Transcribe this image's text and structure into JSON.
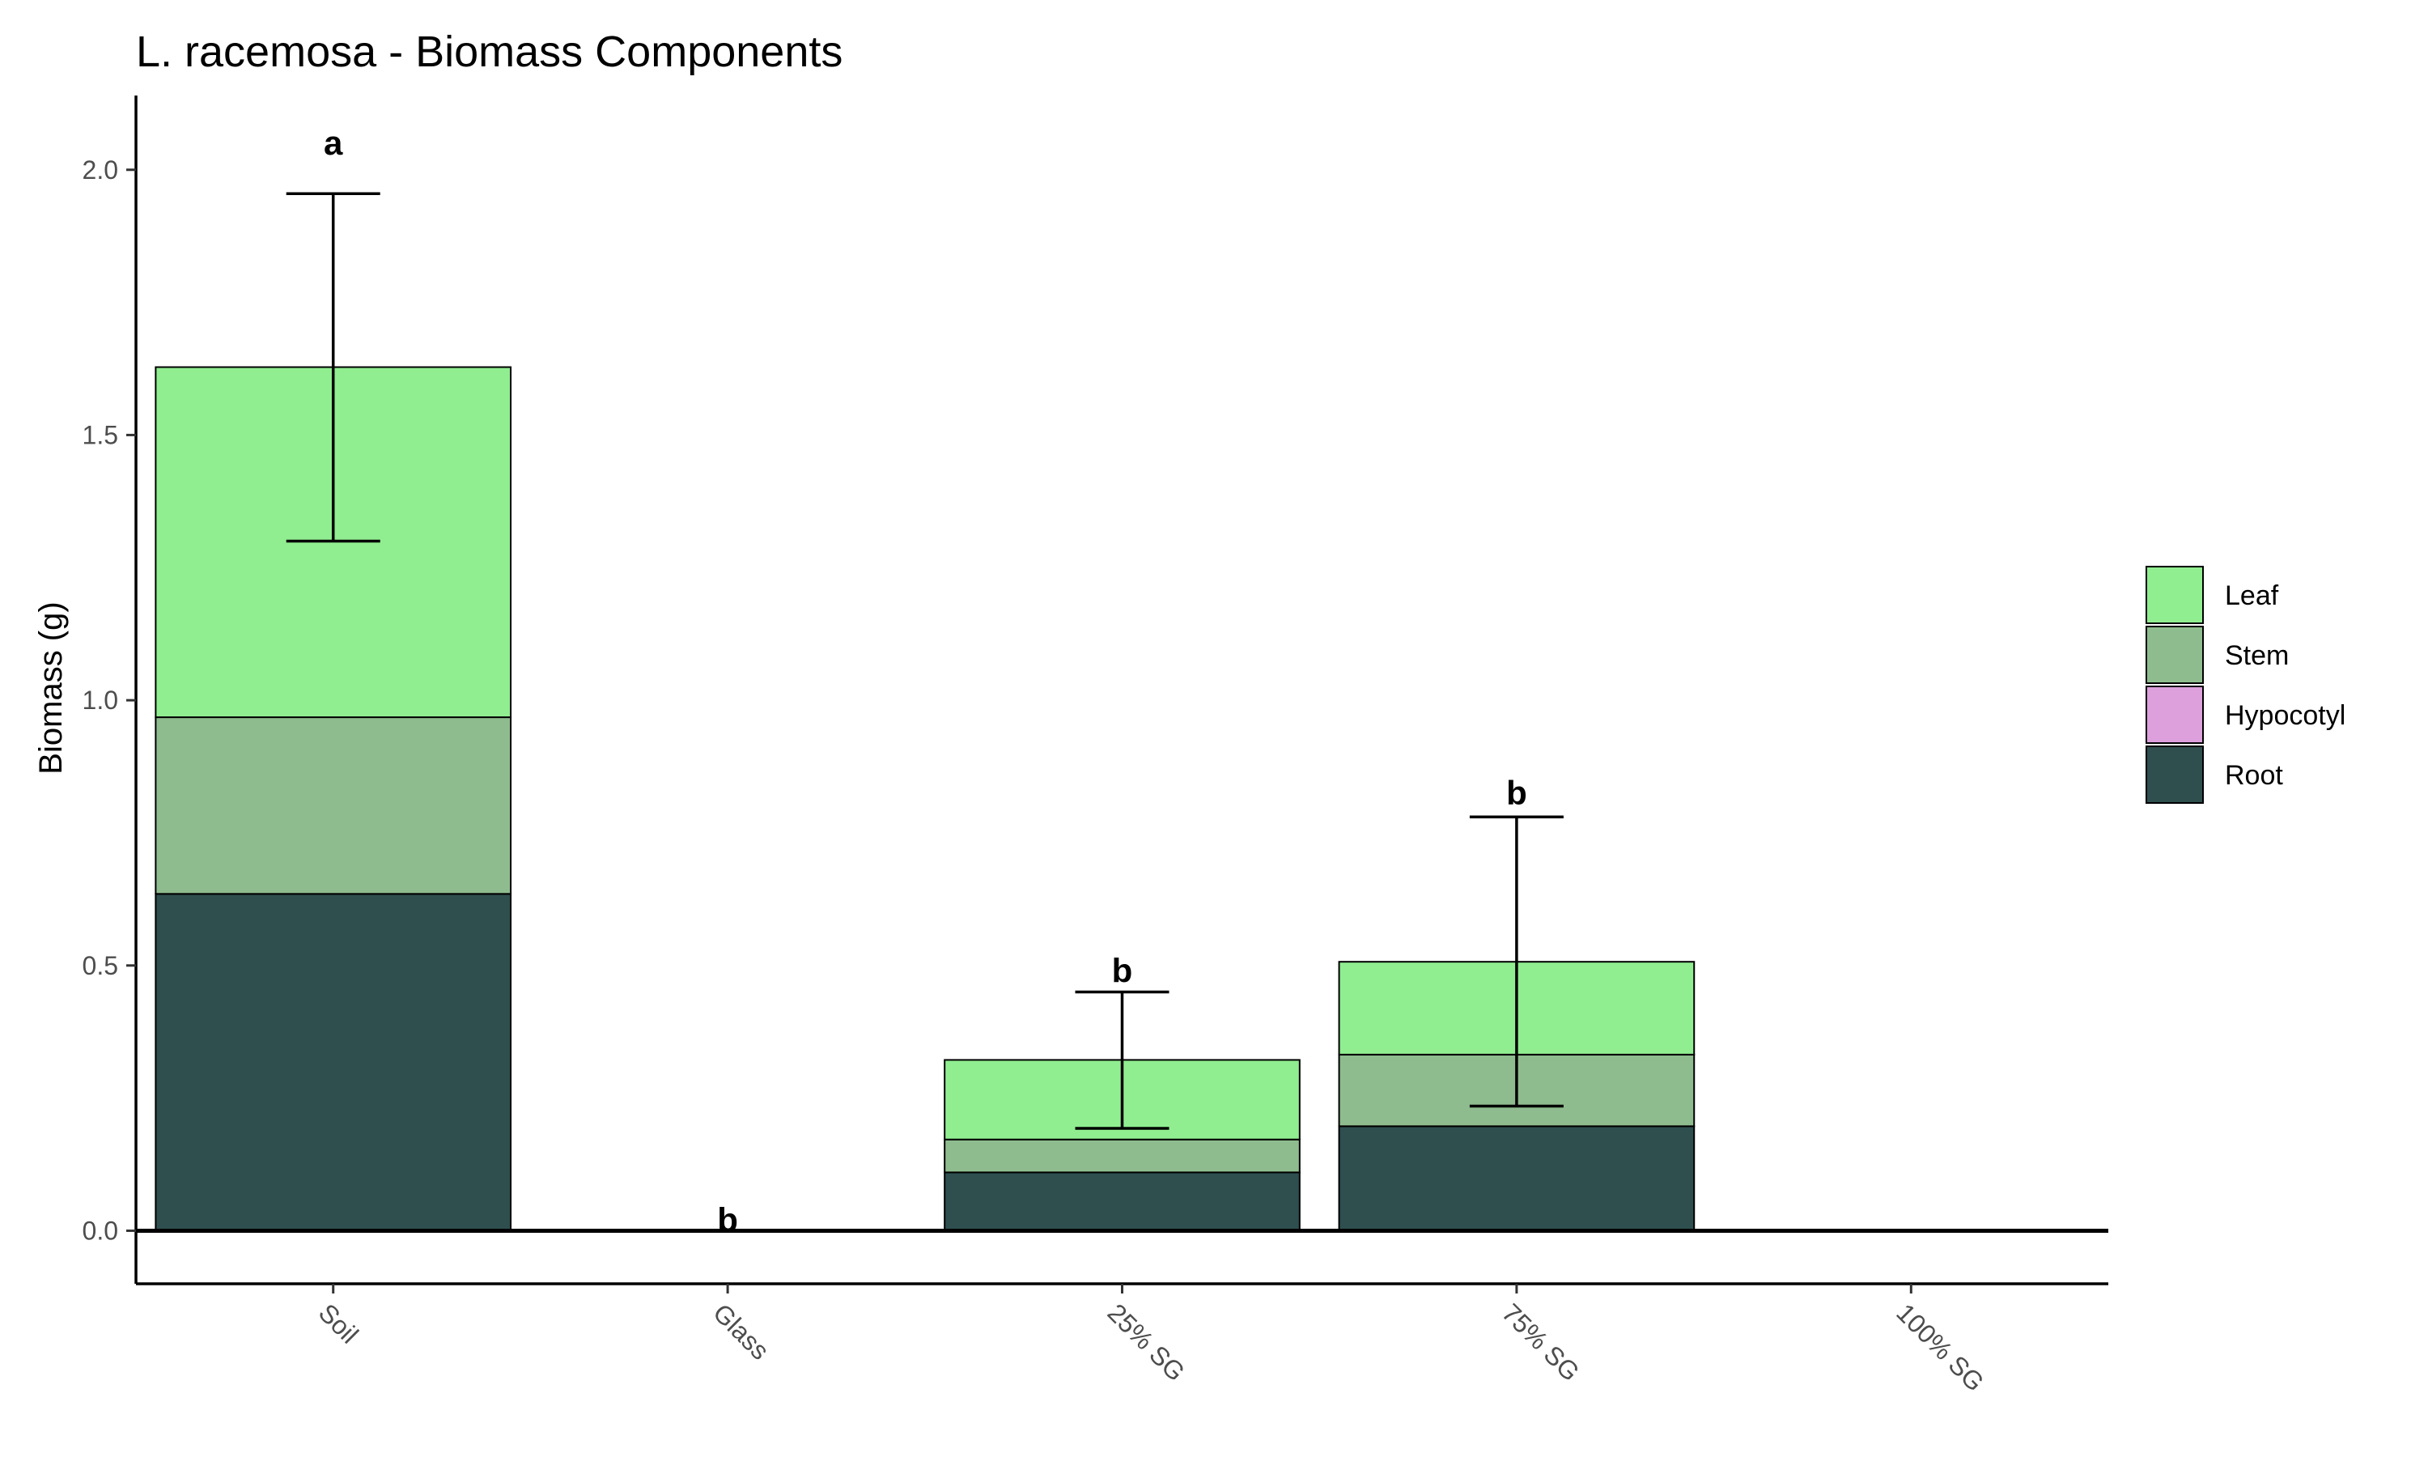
{
  "chart_data": {
    "type": "bar",
    "stacked": true,
    "title": "L. racemosa - Biomass Components",
    "xlabel": "",
    "ylabel": "Biomass (g)",
    "ylim": [
      -0.1,
      2.14
    ],
    "yticks": [
      0.0,
      0.5,
      1.0,
      1.5,
      2.0
    ],
    "ytick_labels": [
      "0.0",
      "0.5",
      "1.0",
      "1.5",
      "2.0"
    ],
    "categories": [
      "Soil",
      "Glass",
      "25% SG",
      "75% SG",
      "100% SG"
    ],
    "series": [
      {
        "name": "Root",
        "color": "#2f4f4f",
        "values": [
          0.635,
          0.0,
          0.11,
          0.197,
          0.0
        ]
      },
      {
        "name": "Hypocotyl",
        "color": "#dda0dd",
        "values": [
          0.0,
          0.0,
          0.0,
          0.0,
          0.0
        ]
      },
      {
        "name": "Stem",
        "color": "#8fbc8f",
        "values": [
          0.333,
          0.0,
          0.062,
          0.135,
          0.0
        ]
      },
      {
        "name": "Leaf",
        "color": "#90ee90",
        "values": [
          0.66,
          0.0,
          0.15,
          0.175,
          0.0
        ]
      }
    ],
    "legend_order": [
      "Leaf",
      "Stem",
      "Hypocotyl",
      "Root"
    ],
    "legend_position": "right",
    "error_bars": [
      {
        "category": "Soil",
        "low": 1.3,
        "high": 1.955
      },
      {
        "category": "25% SG",
        "low": 0.193,
        "high": 0.45
      },
      {
        "category": "75% SG",
        "low": 0.235,
        "high": 0.78
      }
    ],
    "annotations": [
      {
        "category": "Soil",
        "label": "a",
        "y": 2.05
      },
      {
        "category": "Glass",
        "label": "b",
        "y": 0.02
      },
      {
        "category": "25% SG",
        "label": "b",
        "y": 0.49
      },
      {
        "category": "75% SG",
        "label": "b",
        "y": 0.825
      }
    ],
    "zero_line": true,
    "grid": false
  }
}
